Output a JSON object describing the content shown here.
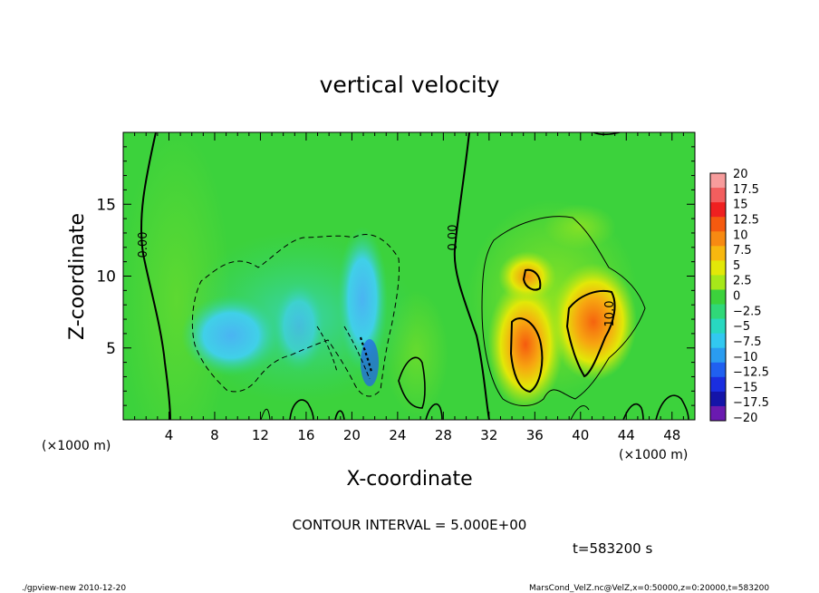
{
  "chart_data": {
    "type": "heatmap",
    "title": "vertical velocity",
    "xlabel": "X-coordinate",
    "ylabel": "Z-coordinate",
    "x_unit": "(×1000 m)",
    "y_unit": "(×1000 m)",
    "xlim": [
      0,
      50
    ],
    "ylim": [
      0,
      20
    ],
    "x_ticks": [
      "4",
      "8",
      "12",
      "16",
      "20",
      "24",
      "28",
      "32",
      "36",
      "40",
      "44",
      "48"
    ],
    "y_ticks": [
      "5",
      "10",
      "15"
    ],
    "colorbar": {
      "labels": [
        "20",
        "17.5",
        "15",
        "12.5",
        "10",
        "7.5",
        "5",
        "2.5",
        "0",
        "−2.5",
        "−5",
        "−7.5",
        "−10",
        "−12.5",
        "−15",
        "−17.5",
        "−20"
      ],
      "colors": [
        "#f79c9c",
        "#f25e5e",
        "#ef2020",
        "#f55a0f",
        "#f78a12",
        "#f7b80f",
        "#e2e808",
        "#a6e81a",
        "#3cd23c",
        "#30d878",
        "#28d8c0",
        "#32c8f0",
        "#2a9cf0",
        "#2060f0",
        "#1a2ee0",
        "#1414a8",
        "#6a1ab0"
      ]
    },
    "contour_labels": [
      "0.00",
      "0.00",
      "10.0"
    ],
    "contour_interval_text": "CONTOUR INTERVAL = 5.000E+00",
    "time_text": "t=583200  s"
  },
  "footer": {
    "left": "./gpview-new  2010-12-20",
    "right": "MarsCond_VelZ.nc@VelZ,x=0:50000,z=0:20000,t=583200"
  }
}
